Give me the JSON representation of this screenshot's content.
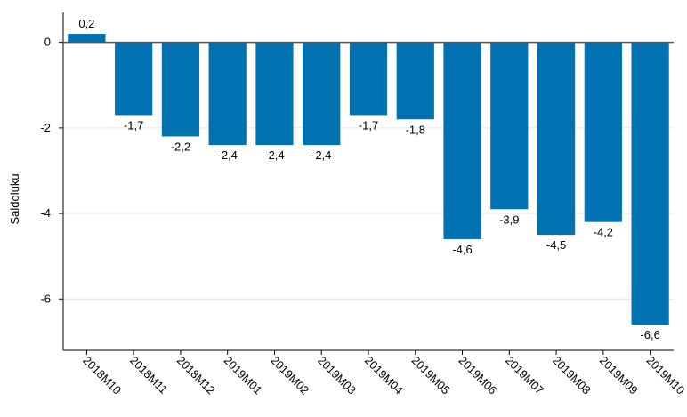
{
  "chart_data": {
    "type": "bar",
    "categories": [
      "2018M10",
      "2018M11",
      "2018M12",
      "2019M01",
      "2019M02",
      "2019M03",
      "2019M04",
      "2019M05",
      "2019M06",
      "2019M07",
      "2019M08",
      "2019M09",
      "2019M10"
    ],
    "values": [
      0.2,
      -1.7,
      -2.2,
      -2.4,
      -2.4,
      -2.4,
      -1.7,
      -1.8,
      -4.6,
      -3.9,
      -4.5,
      -4.2,
      -6.6
    ],
    "value_labels": [
      "0,2",
      "-1,7",
      "-2,2",
      "-2,4",
      "-2,4",
      "-2,4",
      "-1,7",
      "-1,8",
      "-4,6",
      "-3,9",
      "-4,5",
      "-4,2",
      "-6,6"
    ],
    "title": "",
    "xlabel": "",
    "ylabel": "Saldoluku",
    "ylim": [
      -7.2,
      0.7
    ],
    "yticks": [
      0,
      -2,
      -4,
      -6
    ],
    "ytick_labels": [
      "0",
      "-2",
      "-4",
      "-6"
    ],
    "grid": true,
    "bar_color": "#0072b2"
  }
}
